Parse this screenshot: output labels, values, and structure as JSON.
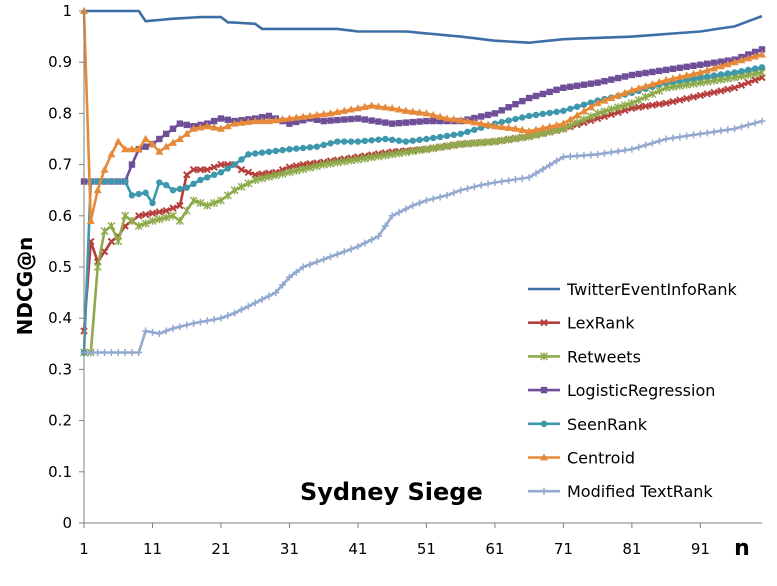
{
  "chart_data": {
    "type": "line",
    "title": "",
    "annotation": "Sydney Siege",
    "xlabel": "n",
    "ylabel": "NDCG@n",
    "xlim": [
      1,
      100
    ],
    "ylim": [
      0,
      1
    ],
    "xticks": [
      1,
      11,
      21,
      31,
      41,
      51,
      61,
      71,
      81,
      91
    ],
    "yticks": [
      0,
      0.1,
      0.2,
      0.3,
      0.4,
      0.5,
      0.6,
      0.7,
      0.8,
      0.9,
      1
    ],
    "grid": false,
    "legend_position": "right",
    "series": [
      {
        "name": "TwitterEventInfoRank",
        "color": "#3e6ea6",
        "marker": "none",
        "points": [
          [
            1,
            1
          ],
          [
            9,
            1
          ],
          [
            10,
            0.98
          ],
          [
            14,
            0.985
          ],
          [
            18,
            0.988
          ],
          [
            21,
            0.988
          ],
          [
            22,
            0.978
          ],
          [
            26,
            0.975
          ],
          [
            27,
            0.965
          ],
          [
            31,
            0.965
          ],
          [
            38,
            0.965
          ],
          [
            41,
            0.96
          ],
          [
            48,
            0.96
          ],
          [
            56,
            0.95
          ],
          [
            61,
            0.942
          ],
          [
            66,
            0.938
          ],
          [
            71,
            0.945
          ],
          [
            81,
            0.95
          ],
          [
            91,
            0.96
          ],
          [
            96,
            0.97
          ],
          [
            100,
            0.99
          ]
        ]
      },
      {
        "name": "LexRank",
        "color": "#b63f3c",
        "marker": "x",
        "points": [
          [
            1,
            0.375
          ],
          [
            2,
            0.55
          ],
          [
            3,
            0.51
          ],
          [
            4,
            0.53
          ],
          [
            5,
            0.55
          ],
          [
            6,
            0.56
          ],
          [
            7,
            0.58
          ],
          [
            8,
            0.59
          ],
          [
            9,
            0.6
          ],
          [
            11,
            0.605
          ],
          [
            13,
            0.61
          ],
          [
            15,
            0.62
          ],
          [
            16,
            0.68
          ],
          [
            17,
            0.69
          ],
          [
            19,
            0.69
          ],
          [
            21,
            0.7
          ],
          [
            23,
            0.7
          ],
          [
            24,
            0.69
          ],
          [
            26,
            0.68
          ],
          [
            29,
            0.685
          ],
          [
            31,
            0.695
          ],
          [
            33,
            0.7
          ],
          [
            36,
            0.705
          ],
          [
            41,
            0.715
          ],
          [
            46,
            0.725
          ],
          [
            51,
            0.73
          ],
          [
            56,
            0.74
          ],
          [
            61,
            0.745
          ],
          [
            66,
            0.755
          ],
          [
            71,
            0.77
          ],
          [
            76,
            0.79
          ],
          [
            81,
            0.81
          ],
          [
            86,
            0.82
          ],
          [
            91,
            0.835
          ],
          [
            96,
            0.85
          ],
          [
            100,
            0.87
          ]
        ]
      },
      {
        "name": "Retweets",
        "color": "#8eab4c",
        "marker": "star",
        "points": [
          [
            1,
            0.333
          ],
          [
            2,
            0.333
          ],
          [
            3,
            0.5
          ],
          [
            4,
            0.57
          ],
          [
            5,
            0.58
          ],
          [
            6,
            0.55
          ],
          [
            7,
            0.6
          ],
          [
            9,
            0.58
          ],
          [
            11,
            0.59
          ],
          [
            14,
            0.6
          ],
          [
            15,
            0.59
          ],
          [
            17,
            0.63
          ],
          [
            19,
            0.62
          ],
          [
            21,
            0.63
          ],
          [
            23,
            0.65
          ],
          [
            26,
            0.67
          ],
          [
            31,
            0.685
          ],
          [
            36,
            0.7
          ],
          [
            41,
            0.71
          ],
          [
            46,
            0.72
          ],
          [
            51,
            0.73
          ],
          [
            56,
            0.74
          ],
          [
            61,
            0.745
          ],
          [
            66,
            0.755
          ],
          [
            71,
            0.77
          ],
          [
            76,
            0.8
          ],
          [
            81,
            0.82
          ],
          [
            86,
            0.85
          ],
          [
            91,
            0.86
          ],
          [
            96,
            0.87
          ],
          [
            100,
            0.88
          ]
        ]
      },
      {
        "name": "LogisticRegression",
        "color": "#6e4f98",
        "marker": "square",
        "points": [
          [
            1,
            0.667
          ],
          [
            6,
            0.667
          ],
          [
            7,
            0.667
          ],
          [
            8,
            0.7
          ],
          [
            9,
            0.73
          ],
          [
            11,
            0.74
          ],
          [
            13,
            0.76
          ],
          [
            15,
            0.78
          ],
          [
            17,
            0.775
          ],
          [
            19,
            0.78
          ],
          [
            21,
            0.79
          ],
          [
            23,
            0.785
          ],
          [
            26,
            0.79
          ],
          [
            28,
            0.795
          ],
          [
            31,
            0.78
          ],
          [
            34,
            0.79
          ],
          [
            36,
            0.785
          ],
          [
            41,
            0.79
          ],
          [
            46,
            0.78
          ],
          [
            51,
            0.785
          ],
          [
            56,
            0.785
          ],
          [
            61,
            0.8
          ],
          [
            66,
            0.83
          ],
          [
            71,
            0.85
          ],
          [
            76,
            0.86
          ],
          [
            81,
            0.875
          ],
          [
            86,
            0.885
          ],
          [
            91,
            0.895
          ],
          [
            96,
            0.905
          ],
          [
            100,
            0.925
          ]
        ]
      },
      {
        "name": "SeenRank",
        "color": "#3d97ad",
        "marker": "circle",
        "points": [
          [
            1,
            0.333
          ],
          [
            2,
            0.667
          ],
          [
            7,
            0.667
          ],
          [
            8,
            0.64
          ],
          [
            10,
            0.645
          ],
          [
            11,
            0.625
          ],
          [
            12,
            0.665
          ],
          [
            13,
            0.66
          ],
          [
            14,
            0.65
          ],
          [
            16,
            0.655
          ],
          [
            18,
            0.67
          ],
          [
            20,
            0.68
          ],
          [
            21,
            0.685
          ],
          [
            23,
            0.7
          ],
          [
            25,
            0.72
          ],
          [
            28,
            0.725
          ],
          [
            31,
            0.73
          ],
          [
            35,
            0.735
          ],
          [
            38,
            0.745
          ],
          [
            41,
            0.745
          ],
          [
            45,
            0.75
          ],
          [
            48,
            0.745
          ],
          [
            51,
            0.75
          ],
          [
            56,
            0.76
          ],
          [
            61,
            0.78
          ],
          [
            66,
            0.795
          ],
          [
            71,
            0.805
          ],
          [
            76,
            0.825
          ],
          [
            81,
            0.84
          ],
          [
            86,
            0.86
          ],
          [
            91,
            0.87
          ],
          [
            96,
            0.88
          ],
          [
            100,
            0.89
          ]
        ]
      },
      {
        "name": "Centroid",
        "color": "#e68a3a",
        "marker": "triangle",
        "points": [
          [
            1,
            1
          ],
          [
            2,
            0.59
          ],
          [
            3,
            0.65
          ],
          [
            4,
            0.69
          ],
          [
            5,
            0.72
          ],
          [
            6,
            0.745
          ],
          [
            7,
            0.73
          ],
          [
            9,
            0.73
          ],
          [
            10,
            0.75
          ],
          [
            11,
            0.74
          ],
          [
            12,
            0.725
          ],
          [
            13,
            0.735
          ],
          [
            15,
            0.75
          ],
          [
            17,
            0.77
          ],
          [
            19,
            0.775
          ],
          [
            21,
            0.77
          ],
          [
            23,
            0.78
          ],
          [
            26,
            0.785
          ],
          [
            28,
            0.785
          ],
          [
            31,
            0.79
          ],
          [
            34,
            0.795
          ],
          [
            37,
            0.8
          ],
          [
            41,
            0.81
          ],
          [
            43,
            0.815
          ],
          [
            46,
            0.81
          ],
          [
            48,
            0.805
          ],
          [
            51,
            0.8
          ],
          [
            54,
            0.79
          ],
          [
            57,
            0.785
          ],
          [
            61,
            0.775
          ],
          [
            64,
            0.77
          ],
          [
            66,
            0.765
          ],
          [
            71,
            0.78
          ],
          [
            76,
            0.82
          ],
          [
            81,
            0.845
          ],
          [
            86,
            0.865
          ],
          [
            91,
            0.88
          ],
          [
            96,
            0.9
          ],
          [
            100,
            0.915
          ]
        ]
      },
      {
        "name": "Modified TextRank",
        "color": "#93a9cf",
        "marker": "plus",
        "points": [
          [
            1,
            0.333
          ],
          [
            9,
            0.333
          ],
          [
            10,
            0.375
          ],
          [
            12,
            0.37
          ],
          [
            14,
            0.38
          ],
          [
            17,
            0.39
          ],
          [
            21,
            0.4
          ],
          [
            23,
            0.41
          ],
          [
            26,
            0.43
          ],
          [
            29,
            0.45
          ],
          [
            31,
            0.48
          ],
          [
            33,
            0.5
          ],
          [
            36,
            0.515
          ],
          [
            41,
            0.54
          ],
          [
            44,
            0.56
          ],
          [
            46,
            0.6
          ],
          [
            49,
            0.62
          ],
          [
            51,
            0.63
          ],
          [
            54,
            0.64
          ],
          [
            56,
            0.65
          ],
          [
            59,
            0.66
          ],
          [
            61,
            0.665
          ],
          [
            66,
            0.675
          ],
          [
            71,
            0.715
          ],
          [
            76,
            0.72
          ],
          [
            81,
            0.73
          ],
          [
            86,
            0.75
          ],
          [
            91,
            0.76
          ],
          [
            96,
            0.77
          ],
          [
            100,
            0.785
          ]
        ]
      }
    ]
  }
}
